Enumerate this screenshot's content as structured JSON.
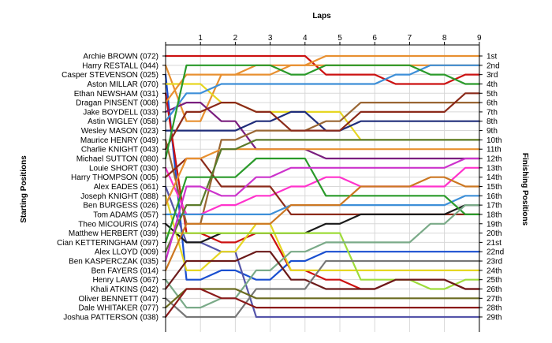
{
  "chart_data": {
    "type": "line",
    "title": "",
    "xlabel": "Laps",
    "ylabel_left": "Starting Positions",
    "ylabel_right": "Finishing Positions",
    "x": [
      0,
      1,
      2,
      3,
      4,
      5,
      6,
      7,
      8,
      9
    ],
    "x_ticks": [
      "1",
      "2",
      "3",
      "4",
      "5",
      "6",
      "7",
      "8",
      "9"
    ],
    "ylim": [
      1,
      29
    ],
    "y_inverted": true,
    "grid": true,
    "finishing_labels": [
      "1st",
      "2nd",
      "3rd",
      "4th",
      "5th",
      "6th",
      "7th",
      "8th",
      "9th",
      "10th",
      "11th",
      "12th",
      "13th",
      "14th",
      "15th",
      "16th",
      "17th",
      "18th",
      "19th",
      "20th",
      "21st",
      "22nd",
      "23rd",
      "24th",
      "25th",
      "26th",
      "27th",
      "28th",
      "29th"
    ],
    "series": [
      {
        "name": "Archie BROWN (072)",
        "color": "#cc1111",
        "values": [
          1,
          1,
          1,
          1,
          1,
          3,
          3,
          4,
          4,
          3
        ]
      },
      {
        "name": "Harry RESTALL (044)",
        "color": "#e89030",
        "values": [
          2,
          8,
          3,
          3,
          2,
          1,
          1,
          1,
          1,
          1
        ]
      },
      {
        "name": "Casper STEVENSON (025)",
        "color": "#1a4fd0",
        "values": [
          3,
          25,
          24,
          25,
          23,
          22,
          22,
          22,
          22,
          22
        ]
      },
      {
        "name": "Aston MILLAR (070)",
        "color": "#e6d622",
        "values": [
          4,
          4,
          6,
          7,
          7,
          7,
          10,
          10,
          10,
          10
        ]
      },
      {
        "name": "Ethan NEWSHAM (031)",
        "color": "#cc1111",
        "values": [
          5,
          20,
          21,
          20,
          24,
          25,
          26,
          25,
          25,
          26
        ]
      },
      {
        "name": "Dragan PINSENT (008)",
        "color": "#e89030",
        "values": [
          6,
          3,
          3,
          2,
          2,
          2,
          2,
          2,
          2,
          2
        ]
      },
      {
        "name": "Jake BOYDELL (033)",
        "color": "#7a1f7f",
        "values": [
          7,
          6,
          8,
          11,
          11,
          12,
          12,
          12,
          12,
          12
        ]
      },
      {
        "name": "Astin WIGLEY (058)",
        "color": "#3d8fd8",
        "values": [
          8,
          5,
          4,
          4,
          4,
          4,
          4,
          3,
          2,
          2
        ]
      },
      {
        "name": "Wesley MASON (023)",
        "color": "#1f2d7a",
        "values": [
          9,
          9,
          9,
          8,
          7,
          9,
          8,
          8,
          8,
          8
        ]
      },
      {
        "name": "Maurice HENRY (049)",
        "color": "#996633",
        "values": [
          10,
          19,
          10,
          9,
          9,
          8,
          6,
          6,
          6,
          6
        ]
      },
      {
        "name": "Charlie KNIGHT (043)",
        "color": "#8b2a1a",
        "values": [
          11,
          7,
          6,
          7,
          9,
          9,
          7,
          7,
          7,
          5
        ]
      },
      {
        "name": "Michael SUTTON (080)",
        "color": "#2a9a2a",
        "values": [
          12,
          2,
          2,
          2,
          3,
          2,
          2,
          2,
          3,
          4
        ]
      },
      {
        "name": "Louie SHORT (030)",
        "color": "#ff33cc",
        "values": [
          13,
          18,
          17,
          16,
          15,
          14,
          15,
          15,
          15,
          13
        ]
      },
      {
        "name": "Harry THOMPSON (005)",
        "color": "#8b2a1a",
        "values": [
          14,
          12,
          15,
          15,
          18,
          18,
          18,
          18,
          18,
          18
        ]
      },
      {
        "name": "Alex EADES (061)",
        "color": "#5555aa",
        "values": [
          15,
          21,
          22,
          29,
          29,
          29,
          29,
          29,
          29,
          29
        ]
      },
      {
        "name": "Joseph KNIGHT (088)",
        "color": "#e6d622",
        "values": [
          16,
          24,
          22,
          19,
          24,
          24,
          24,
          24,
          24,
          24
        ]
      },
      {
        "name": "Ben BURGESS (026)",
        "color": "#e89030",
        "values": [
          17,
          12,
          11,
          11,
          11,
          11,
          11,
          11,
          11,
          11
        ]
      },
      {
        "name": "Tom ADAMS (057)",
        "color": "#3d8fd8",
        "values": [
          18,
          18,
          18,
          18,
          17,
          17,
          17,
          17,
          17,
          16
        ]
      },
      {
        "name": "Theo MICOURIS (074)",
        "color": "#1a1a1a",
        "values": [
          19,
          21,
          20,
          20,
          20,
          19,
          18,
          18,
          18,
          17
        ]
      },
      {
        "name": "Matthew HERBERT (039)",
        "color": "#9edc3a",
        "values": [
          20,
          20,
          20,
          20,
          20,
          20,
          25,
          25,
          26,
          25
        ]
      },
      {
        "name": "Cian KETTERINGHAM (097)",
        "color": "#2a9a2a",
        "values": [
          21,
          14,
          14,
          12,
          12,
          16,
          16,
          16,
          16,
          18
        ]
      },
      {
        "name": "Alex LLOYD (009)",
        "color": "#5a7a2a",
        "values": [
          22,
          17,
          11,
          10,
          10,
          10,
          10,
          10,
          10,
          10
        ]
      },
      {
        "name": "Ben KASPERCZAK (035)",
        "color": "#cc33cc",
        "values": [
          23,
          15,
          16,
          14,
          13,
          13,
          13,
          13,
          13,
          12
        ]
      },
      {
        "name": "Ben FAYERS (014)",
        "color": "#cc7722",
        "values": [
          24,
          19,
          19,
          19,
          17,
          17,
          15,
          15,
          14,
          15
        ]
      },
      {
        "name": "Henry LAWS (067)",
        "color": "#7aaa88",
        "values": [
          25,
          28,
          27,
          24,
          22,
          21,
          21,
          21,
          19,
          17
        ]
      },
      {
        "name": "Khali ATKINS (042)",
        "color": "#6b1a1a",
        "values": [
          26,
          23,
          23,
          22,
          25,
          26,
          26,
          25,
          25,
          26
        ]
      },
      {
        "name": "Oliver BENNETT (047)",
        "color": "#777777",
        "values": [
          27,
          29,
          29,
          26,
          26,
          23,
          23,
          23,
          23,
          23
        ]
      },
      {
        "name": "Dale WHITAKER (077)",
        "color": "#6b6b20",
        "values": [
          28,
          26,
          26,
          27,
          27,
          27,
          27,
          27,
          27,
          27
        ]
      },
      {
        "name": "Joshua PATTERSON (038)",
        "color": "#8b1a1a",
        "values": [
          29,
          26,
          27,
          28,
          28,
          28,
          28,
          28,
          28,
          28
        ]
      }
    ]
  }
}
